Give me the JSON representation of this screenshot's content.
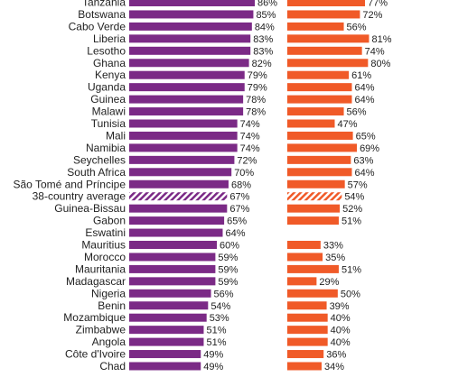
{
  "colors": {
    "series1": "#7B2A86",
    "series2": "#F05A28",
    "text": "#222222",
    "background": "#ffffff"
  },
  "chart_data": {
    "type": "bar",
    "orientation": "horizontal",
    "layout": "two side-by-side bar panels, shared category labels on the left",
    "grid": false,
    "legend": "none visible",
    "value_unit": "%",
    "xlim": [
      0,
      100
    ],
    "categories": [
      "Tanzania",
      "Botswana",
      "Cabo Verde",
      "Liberia",
      "Lesotho",
      "Ghana",
      "Kenya",
      "Uganda",
      "Guinea",
      "Malawi",
      "Tunisia",
      "Mali",
      "Namibia",
      "Seychelles",
      "South Africa",
      "São Tomé and Príncipe",
      "38-country average",
      "Guinea-Bissau",
      "Gabon",
      "Eswatini",
      "Mauritius",
      "Morocco",
      "Mauritania",
      "Madagascar",
      "Nigeria",
      "Benin",
      "Mozambique",
      "Zimbabwe",
      "Angola",
      "Côte d'Ivoire",
      "Chad"
    ],
    "highlight_category": "38-country average",
    "series": [
      {
        "values": [
          86,
          85,
          84,
          83,
          83,
          82,
          79,
          79,
          78,
          78,
          74,
          74,
          74,
          72,
          70,
          68,
          67,
          67,
          65,
          64,
          60,
          59,
          59,
          59,
          56,
          54,
          53,
          51,
          51,
          49,
          49
        ]
      },
      {
        "values": [
          77,
          72,
          56,
          81,
          74,
          80,
          61,
          64,
          64,
          56,
          47,
          65,
          69,
          63,
          64,
          57,
          54,
          52,
          51,
          null,
          33,
          35,
          51,
          29,
          50,
          39,
          40,
          40,
          40,
          36,
          34
        ]
      }
    ]
  }
}
